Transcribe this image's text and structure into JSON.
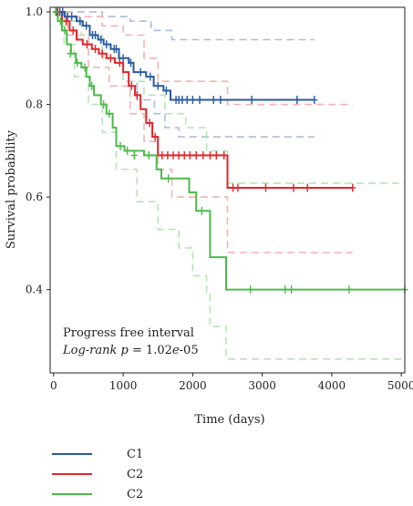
{
  "chart_data": {
    "type": "line",
    "subtype": "kaplan-meier",
    "xlabel": "Time (days)",
    "ylabel": "Survival probability",
    "xlim": [
      -50,
      5050
    ],
    "ylim": [
      0.22,
      1.01
    ],
    "x_ticks": [
      0,
      1000,
      2000,
      3000,
      4000,
      5000
    ],
    "y_ticks": [
      0.4,
      0.6,
      0.8,
      1.0
    ],
    "x_tick_labels": [
      "0",
      "1000",
      "2000",
      "3000",
      "4000",
      "5000"
    ],
    "y_tick_labels": [
      "0.4",
      "0.6",
      "0.8",
      "1.0"
    ],
    "grid": false,
    "annotation": {
      "line1": "Progress free interval",
      "line2_italic": "Log-rank p",
      "line2_rest": " = 1.02",
      "line2_exp_italic": "e",
      "line2_exp_rest": "-05"
    },
    "legend_position": "bottom-left",
    "series": [
      {
        "name": "C1",
        "color": "#2a5aa0",
        "ci_color": "#a9bddb",
        "steps": [
          [
            0,
            1.0
          ],
          [
            160,
            0.99
          ],
          [
            330,
            0.98
          ],
          [
            420,
            0.97
          ],
          [
            520,
            0.95
          ],
          [
            640,
            0.94
          ],
          [
            720,
            0.93
          ],
          [
            820,
            0.92
          ],
          [
            940,
            0.9
          ],
          [
            1080,
            0.89
          ],
          [
            1150,
            0.87
          ],
          [
            1330,
            0.86
          ],
          [
            1440,
            0.84
          ],
          [
            1580,
            0.83
          ],
          [
            1680,
            0.81
          ],
          [
            3750,
            0.81
          ]
        ],
        "censor": [
          [
            40,
            1.0
          ],
          [
            90,
            1.0
          ],
          [
            130,
            1.0
          ],
          [
            200,
            0.99
          ],
          [
            260,
            0.99
          ],
          [
            380,
            0.98
          ],
          [
            470,
            0.97
          ],
          [
            560,
            0.95
          ],
          [
            600,
            0.95
          ],
          [
            680,
            0.94
          ],
          [
            760,
            0.93
          ],
          [
            870,
            0.92
          ],
          [
            900,
            0.92
          ],
          [
            1000,
            0.9
          ],
          [
            1110,
            0.89
          ],
          [
            1250,
            0.87
          ],
          [
            1390,
            0.86
          ],
          [
            1500,
            0.84
          ],
          [
            1620,
            0.83
          ],
          [
            1760,
            0.81
          ],
          [
            1800,
            0.81
          ],
          [
            1850,
            0.81
          ],
          [
            1920,
            0.81
          ],
          [
            2000,
            0.81
          ],
          [
            2100,
            0.81
          ],
          [
            2300,
            0.81
          ],
          [
            2400,
            0.81
          ],
          [
            2850,
            0.81
          ],
          [
            3500,
            0.81
          ],
          [
            3750,
            0.81
          ]
        ],
        "ci_upper": [
          [
            0,
            1.0
          ],
          [
            350,
            1.0
          ],
          [
            700,
            0.99
          ],
          [
            1100,
            0.98
          ],
          [
            1400,
            0.96
          ],
          [
            1700,
            0.94
          ],
          [
            3750,
            0.94
          ]
        ],
        "ci_lower": [
          [
            0,
            1.0
          ],
          [
            200,
            0.98
          ],
          [
            400,
            0.95
          ],
          [
            700,
            0.9
          ],
          [
            1000,
            0.85
          ],
          [
            1200,
            0.81
          ],
          [
            1450,
            0.78
          ],
          [
            1600,
            0.75
          ],
          [
            1800,
            0.73
          ],
          [
            3750,
            0.73
          ]
        ]
      },
      {
        "name": "C2",
        "color": "#e0262a",
        "ci_color": "#f4b2b3",
        "steps": [
          [
            0,
            1.0
          ],
          [
            120,
            0.98
          ],
          [
            230,
            0.96
          ],
          [
            330,
            0.94
          ],
          [
            420,
            0.93
          ],
          [
            550,
            0.92
          ],
          [
            650,
            0.91
          ],
          [
            760,
            0.9
          ],
          [
            880,
            0.89
          ],
          [
            1000,
            0.87
          ],
          [
            1080,
            0.84
          ],
          [
            1170,
            0.82
          ],
          [
            1250,
            0.79
          ],
          [
            1330,
            0.76
          ],
          [
            1420,
            0.73
          ],
          [
            1500,
            0.69
          ],
          [
            2500,
            0.69
          ],
          [
            2500,
            0.62
          ],
          [
            4300,
            0.62
          ]
        ],
        "censor": [
          [
            60,
            1.0
          ],
          [
            180,
            0.98
          ],
          [
            280,
            0.96
          ],
          [
            480,
            0.93
          ],
          [
            600,
            0.92
          ],
          [
            700,
            0.91
          ],
          [
            820,
            0.9
          ],
          [
            950,
            0.89
          ],
          [
            1120,
            0.84
          ],
          [
            1200,
            0.82
          ],
          [
            1380,
            0.76
          ],
          [
            1460,
            0.73
          ],
          [
            1560,
            0.69
          ],
          [
            1640,
            0.69
          ],
          [
            1720,
            0.69
          ],
          [
            1800,
            0.69
          ],
          [
            1880,
            0.69
          ],
          [
            1960,
            0.69
          ],
          [
            2050,
            0.69
          ],
          [
            2150,
            0.69
          ],
          [
            2250,
            0.69
          ],
          [
            2340,
            0.69
          ],
          [
            2450,
            0.69
          ],
          [
            2580,
            0.62
          ],
          [
            2650,
            0.62
          ],
          [
            3050,
            0.62
          ],
          [
            3450,
            0.62
          ],
          [
            3650,
            0.62
          ],
          [
            4300,
            0.62
          ]
        ],
        "ci_upper": [
          [
            0,
            1.0
          ],
          [
            300,
            0.99
          ],
          [
            700,
            0.97
          ],
          [
            1000,
            0.95
          ],
          [
            1300,
            0.9
          ],
          [
            1500,
            0.85
          ],
          [
            2500,
            0.85
          ],
          [
            2500,
            0.8
          ],
          [
            4300,
            0.8
          ]
        ],
        "ci_lower": [
          [
            0,
            1.0
          ],
          [
            200,
            0.95
          ],
          [
            500,
            0.88
          ],
          [
            800,
            0.84
          ],
          [
            1100,
            0.78
          ],
          [
            1300,
            0.72
          ],
          [
            1500,
            0.66
          ],
          [
            1700,
            0.6
          ],
          [
            2500,
            0.6
          ],
          [
            2500,
            0.48
          ],
          [
            4300,
            0.48
          ]
        ]
      },
      {
        "name": "C2",
        "color": "#4cba4a",
        "ci_color": "#b9e4b6",
        "steps": [
          [
            0,
            1.0
          ],
          [
            60,
            0.98
          ],
          [
            120,
            0.96
          ],
          [
            190,
            0.93
          ],
          [
            250,
            0.91
          ],
          [
            320,
            0.89
          ],
          [
            400,
            0.88
          ],
          [
            470,
            0.86
          ],
          [
            520,
            0.84
          ],
          [
            580,
            0.82
          ],
          [
            680,
            0.8
          ],
          [
            760,
            0.78
          ],
          [
            850,
            0.75
          ],
          [
            900,
            0.71
          ],
          [
            1020,
            0.7
          ],
          [
            1300,
            0.69
          ],
          [
            1480,
            0.66
          ],
          [
            1550,
            0.64
          ],
          [
            1950,
            0.61
          ],
          [
            2050,
            0.57
          ],
          [
            2250,
            0.47
          ],
          [
            2480,
            0.4
          ],
          [
            5050,
            0.4
          ]
        ],
        "censor": [
          [
            30,
            1.0
          ],
          [
            100,
            0.98
          ],
          [
            160,
            0.96
          ],
          [
            240,
            0.91
          ],
          [
            340,
            0.89
          ],
          [
            450,
            0.88
          ],
          [
            550,
            0.84
          ],
          [
            720,
            0.8
          ],
          [
            800,
            0.78
          ],
          [
            960,
            0.71
          ],
          [
            1060,
            0.7
          ],
          [
            1160,
            0.69
          ],
          [
            1370,
            0.69
          ],
          [
            1650,
            0.64
          ],
          [
            2130,
            0.57
          ],
          [
            2830,
            0.4
          ],
          [
            3330,
            0.4
          ],
          [
            3420,
            0.4
          ],
          [
            4250,
            0.4
          ],
          [
            5050,
            0.4
          ]
        ],
        "ci_upper": [
          [
            0,
            1.0
          ],
          [
            200,
            0.98
          ],
          [
            400,
            0.95
          ],
          [
            700,
            0.9
          ],
          [
            1000,
            0.85
          ],
          [
            1300,
            0.82
          ],
          [
            1600,
            0.78
          ],
          [
            1900,
            0.75
          ],
          [
            2200,
            0.7
          ],
          [
            2500,
            0.66
          ],
          [
            2500,
            0.63
          ],
          [
            5050,
            0.63
          ]
        ],
        "ci_lower": [
          [
            0,
            1.0
          ],
          [
            150,
            0.93
          ],
          [
            300,
            0.86
          ],
          [
            500,
            0.8
          ],
          [
            700,
            0.74
          ],
          [
            900,
            0.66
          ],
          [
            1200,
            0.59
          ],
          [
            1500,
            0.53
          ],
          [
            1800,
            0.49
          ],
          [
            2000,
            0.43
          ],
          [
            2200,
            0.39
          ],
          [
            2250,
            0.32
          ],
          [
            2480,
            0.25
          ],
          [
            5050,
            0.25
          ]
        ]
      }
    ]
  }
}
